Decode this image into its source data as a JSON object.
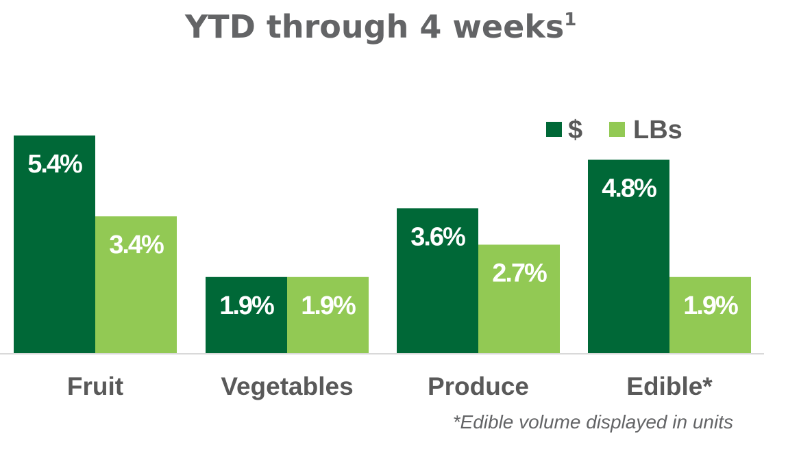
{
  "chart_data": {
    "type": "bar",
    "title": "YTD through 4 weeks",
    "title_superscript": "1",
    "categories": [
      "Fruit",
      "Vegetables",
      "Produce",
      "Edible*"
    ],
    "series": [
      {
        "name": "$",
        "color": "#006837",
        "values": [
          5.4,
          1.9,
          3.6,
          4.8
        ],
        "labels": [
          "5.4%",
          "1.9%",
          "3.6%",
          "4.8%"
        ]
      },
      {
        "name": "LBs",
        "color": "#92C954",
        "values": [
          3.4,
          1.9,
          2.7,
          1.9
        ],
        "labels": [
          "3.4%",
          "1.9%",
          "2.7%",
          "1.9%"
        ]
      }
    ],
    "ylim": [
      0,
      5.4
    ],
    "grid": false,
    "legend_position": "top-right",
    "footnote": "*Edible volume displayed in units"
  }
}
